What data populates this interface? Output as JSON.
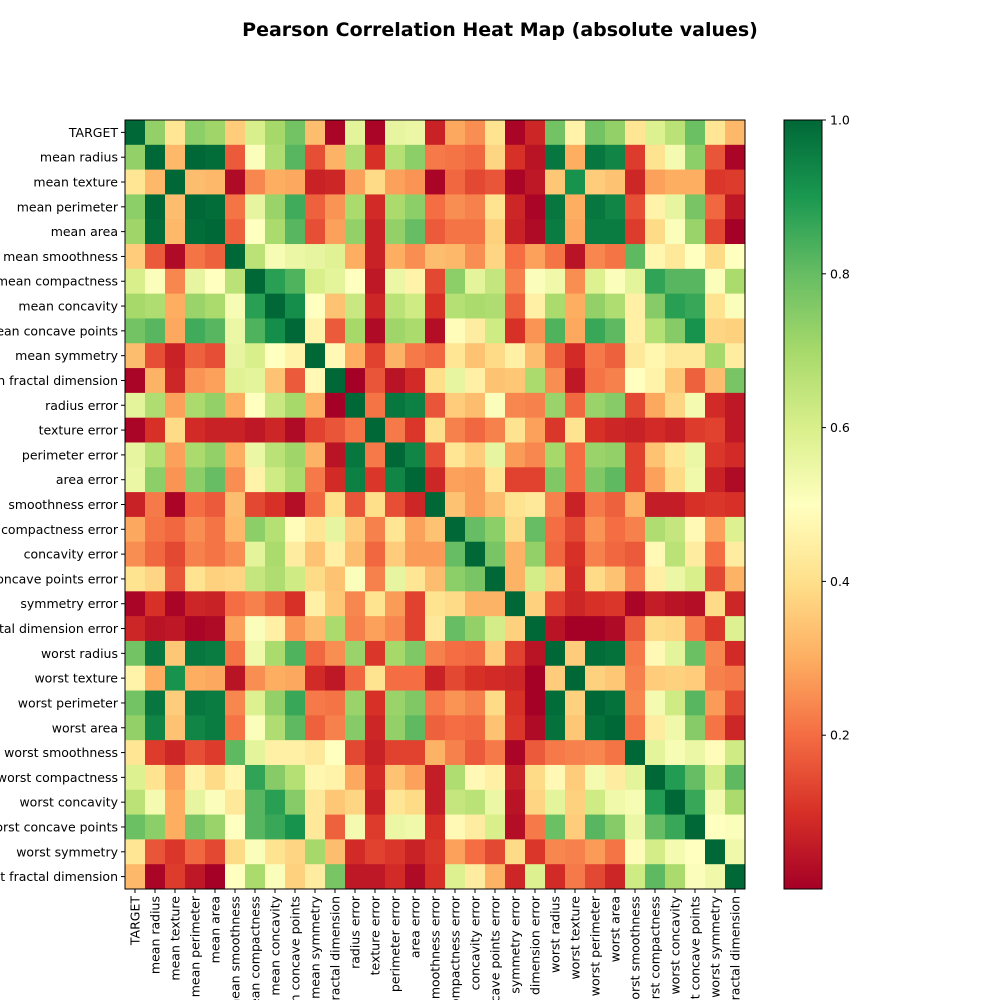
{
  "chart_data": {
    "type": "heatmap",
    "title": "Pearson Correlation Heat Map (absolute values)",
    "colormap": "RdYlGn",
    "colorbar": {
      "range": [
        0,
        1
      ],
      "ticks": [
        "0.2",
        "0.4",
        "0.6",
        "0.8",
        "1.0"
      ]
    },
    "labels": [
      "TARGET",
      "mean radius",
      "mean texture",
      "mean perimeter",
      "mean area",
      "mean smoothness",
      "mean compactness",
      "mean concavity",
      "mean concave points",
      "mean symmetry",
      "mean fractal dimension",
      "radius error",
      "texture error",
      "perimeter error",
      "area error",
      "smoothness error",
      "compactness error",
      "concavity error",
      "concave points error",
      "symmetry error",
      "fractal dimension error",
      "worst radius",
      "worst texture",
      "worst perimeter",
      "worst area",
      "worst smoothness",
      "worst compactness",
      "worst concavity",
      "worst concave points",
      "worst symmetry",
      "worst fractal dimension"
    ],
    "values": [
      [
        1,
        0.73,
        0.42,
        0.74,
        0.71,
        0.36,
        0.6,
        0.7,
        0.78,
        0.33,
        0.01,
        0.57,
        0.01,
        0.56,
        0.55,
        0.07,
        0.29,
        0.25,
        0.41,
        0.01,
        0.08,
        0.78,
        0.46,
        0.78,
        0.73,
        0.42,
        0.59,
        0.66,
        0.79,
        0.42,
        0.32
      ],
      [
        0.73,
        1,
        0.32,
        1.0,
        0.99,
        0.17,
        0.51,
        0.68,
        0.82,
        0.15,
        0.31,
        0.68,
        0.1,
        0.67,
        0.74,
        0.22,
        0.21,
        0.19,
        0.38,
        0.1,
        0.04,
        0.97,
        0.3,
        0.97,
        0.94,
        0.12,
        0.41,
        0.53,
        0.74,
        0.16,
        0.01
      ],
      [
        0.42,
        0.32,
        1,
        0.33,
        0.32,
        0.02,
        0.24,
        0.3,
        0.29,
        0.07,
        0.08,
        0.28,
        0.39,
        0.28,
        0.26,
        0.01,
        0.19,
        0.14,
        0.16,
        0.01,
        0.05,
        0.35,
        0.91,
        0.36,
        0.34,
        0.08,
        0.28,
        0.3,
        0.3,
        0.11,
        0.12
      ],
      [
        0.74,
        1.0,
        0.33,
        1,
        0.99,
        0.21,
        0.56,
        0.72,
        0.85,
        0.18,
        0.26,
        0.69,
        0.09,
        0.69,
        0.74,
        0.2,
        0.25,
        0.23,
        0.41,
        0.08,
        0.01,
        0.97,
        0.3,
        0.97,
        0.94,
        0.15,
        0.46,
        0.56,
        0.77,
        0.19,
        0.05
      ],
      [
        0.71,
        0.99,
        0.32,
        0.99,
        1,
        0.18,
        0.5,
        0.69,
        0.82,
        0.15,
        0.28,
        0.73,
        0.07,
        0.73,
        0.8,
        0.17,
        0.21,
        0.21,
        0.37,
        0.07,
        0.02,
        0.96,
        0.29,
        0.96,
        0.96,
        0.12,
        0.39,
        0.51,
        0.72,
        0.14,
        0.0
      ],
      [
        0.36,
        0.17,
        0.02,
        0.21,
        0.18,
        1,
        0.66,
        0.52,
        0.55,
        0.56,
        0.58,
        0.3,
        0.07,
        0.3,
        0.25,
        0.33,
        0.32,
        0.25,
        0.38,
        0.2,
        0.28,
        0.21,
        0.04,
        0.24,
        0.21,
        0.81,
        0.47,
        0.43,
        0.5,
        0.39,
        0.5
      ],
      [
        0.6,
        0.51,
        0.24,
        0.56,
        0.5,
        0.66,
        1,
        0.88,
        0.83,
        0.6,
        0.57,
        0.5,
        0.05,
        0.55,
        0.46,
        0.14,
        0.74,
        0.57,
        0.64,
        0.23,
        0.51,
        0.54,
        0.25,
        0.59,
        0.51,
        0.57,
        0.87,
        0.82,
        0.82,
        0.51,
        0.69
      ],
      [
        0.7,
        0.68,
        0.3,
        0.72,
        0.69,
        0.52,
        0.88,
        1,
        0.92,
        0.5,
        0.34,
        0.63,
        0.08,
        0.66,
        0.62,
        0.1,
        0.67,
        0.69,
        0.68,
        0.18,
        0.45,
        0.69,
        0.3,
        0.73,
        0.68,
        0.45,
        0.75,
        0.88,
        0.86,
        0.41,
        0.51
      ],
      [
        0.78,
        0.82,
        0.29,
        0.85,
        0.82,
        0.55,
        0.83,
        0.92,
        1,
        0.46,
        0.17,
        0.7,
        0.02,
        0.71,
        0.69,
        0.03,
        0.49,
        0.44,
        0.62,
        0.1,
        0.26,
        0.83,
        0.29,
        0.86,
        0.81,
        0.45,
        0.67,
        0.75,
        0.91,
        0.38,
        0.37
      ],
      [
        0.33,
        0.15,
        0.07,
        0.18,
        0.15,
        0.56,
        0.6,
        0.5,
        0.46,
        1,
        0.48,
        0.3,
        0.13,
        0.31,
        0.22,
        0.19,
        0.42,
        0.34,
        0.39,
        0.45,
        0.33,
        0.19,
        0.09,
        0.22,
        0.18,
        0.43,
        0.47,
        0.43,
        0.43,
        0.7,
        0.44
      ],
      [
        0.01,
        0.31,
        0.08,
        0.26,
        0.28,
        0.58,
        0.57,
        0.34,
        0.17,
        0.48,
        1,
        0.0,
        0.16,
        0.04,
        0.09,
        0.4,
        0.56,
        0.45,
        0.34,
        0.35,
        0.69,
        0.25,
        0.05,
        0.21,
        0.23,
        0.5,
        0.46,
        0.35,
        0.18,
        0.33,
        0.77
      ],
      [
        0.57,
        0.68,
        0.28,
        0.69,
        0.73,
        0.3,
        0.5,
        0.63,
        0.7,
        0.3,
        0.0,
        1,
        0.21,
        0.97,
        0.95,
        0.16,
        0.36,
        0.33,
        0.51,
        0.24,
        0.23,
        0.72,
        0.19,
        0.72,
        0.75,
        0.14,
        0.29,
        0.38,
        0.53,
        0.09,
        0.05
      ],
      [
        0.01,
        0.1,
        0.39,
        0.09,
        0.07,
        0.07,
        0.05,
        0.08,
        0.02,
        0.13,
        0.16,
        0.21,
        1,
        0.22,
        0.11,
        0.4,
        0.23,
        0.19,
        0.23,
        0.41,
        0.28,
        0.11,
        0.41,
        0.1,
        0.08,
        0.07,
        0.09,
        0.07,
        0.12,
        0.13,
        0.05
      ],
      [
        0.56,
        0.67,
        0.28,
        0.69,
        0.73,
        0.3,
        0.55,
        0.66,
        0.71,
        0.31,
        0.04,
        0.97,
        0.22,
        1,
        0.94,
        0.15,
        0.42,
        0.36,
        0.56,
        0.27,
        0.24,
        0.7,
        0.2,
        0.72,
        0.73,
        0.13,
        0.34,
        0.42,
        0.55,
        0.11,
        0.09
      ],
      [
        0.55,
        0.74,
        0.26,
        0.74,
        0.8,
        0.25,
        0.46,
        0.62,
        0.69,
        0.22,
        0.09,
        0.95,
        0.11,
        0.94,
        1,
        0.08,
        0.28,
        0.27,
        0.42,
        0.13,
        0.13,
        0.76,
        0.2,
        0.76,
        0.81,
        0.13,
        0.28,
        0.39,
        0.54,
        0.07,
        0.02
      ],
      [
        0.07,
        0.22,
        0.01,
        0.2,
        0.17,
        0.33,
        0.14,
        0.1,
        0.03,
        0.19,
        0.4,
        0.16,
        0.4,
        0.15,
        0.08,
        1,
        0.34,
        0.27,
        0.33,
        0.41,
        0.43,
        0.23,
        0.07,
        0.22,
        0.18,
        0.31,
        0.06,
        0.06,
        0.1,
        0.11,
        0.1
      ],
      [
        0.29,
        0.21,
        0.19,
        0.25,
        0.21,
        0.32,
        0.74,
        0.67,
        0.49,
        0.42,
        0.56,
        0.36,
        0.23,
        0.42,
        0.28,
        0.34,
        1,
        0.8,
        0.74,
        0.39,
        0.8,
        0.2,
        0.14,
        0.26,
        0.2,
        0.23,
        0.68,
        0.64,
        0.48,
        0.28,
        0.59
      ],
      [
        0.25,
        0.19,
        0.14,
        0.23,
        0.21,
        0.25,
        0.57,
        0.69,
        0.44,
        0.34,
        0.45,
        0.33,
        0.19,
        0.36,
        0.27,
        0.27,
        0.8,
        1,
        0.77,
        0.31,
        0.73,
        0.19,
        0.1,
        0.23,
        0.19,
        0.17,
        0.48,
        0.66,
        0.44,
        0.2,
        0.44
      ],
      [
        0.41,
        0.38,
        0.16,
        0.41,
        0.37,
        0.38,
        0.64,
        0.68,
        0.62,
        0.39,
        0.34,
        0.51,
        0.23,
        0.56,
        0.42,
        0.33,
        0.74,
        0.77,
        1,
        0.31,
        0.61,
        0.36,
        0.09,
        0.39,
        0.34,
        0.22,
        0.45,
        0.55,
        0.6,
        0.14,
        0.31
      ],
      [
        0.01,
        0.1,
        0.01,
        0.08,
        0.07,
        0.2,
        0.23,
        0.18,
        0.1,
        0.45,
        0.35,
        0.24,
        0.41,
        0.27,
        0.13,
        0.41,
        0.39,
        0.31,
        0.31,
        1,
        0.37,
        0.13,
        0.08,
        0.1,
        0.11,
        0.01,
        0.06,
        0.04,
        0.03,
        0.39,
        0.08
      ],
      [
        0.08,
        0.04,
        0.05,
        0.01,
        0.02,
        0.28,
        0.51,
        0.45,
        0.26,
        0.33,
        0.69,
        0.23,
        0.28,
        0.24,
        0.13,
        0.43,
        0.8,
        0.73,
        0.61,
        0.37,
        1,
        0.04,
        0.0,
        0.0,
        0.02,
        0.17,
        0.39,
        0.38,
        0.22,
        0.11,
        0.59
      ],
      [
        0.78,
        0.97,
        0.35,
        0.97,
        0.96,
        0.21,
        0.54,
        0.69,
        0.83,
        0.19,
        0.25,
        0.72,
        0.11,
        0.7,
        0.76,
        0.23,
        0.2,
        0.19,
        0.36,
        0.13,
        0.04,
        1,
        0.36,
        0.99,
        0.98,
        0.22,
        0.48,
        0.57,
        0.79,
        0.24,
        0.09
      ],
      [
        0.46,
        0.3,
        0.91,
        0.3,
        0.29,
        0.04,
        0.25,
        0.3,
        0.29,
        0.09,
        0.05,
        0.19,
        0.41,
        0.2,
        0.2,
        0.07,
        0.14,
        0.1,
        0.09,
        0.08,
        0.0,
        0.36,
        1,
        0.37,
        0.35,
        0.23,
        0.36,
        0.37,
        0.36,
        0.23,
        0.22
      ],
      [
        0.78,
        0.97,
        0.36,
        0.97,
        0.96,
        0.24,
        0.59,
        0.73,
        0.86,
        0.22,
        0.21,
        0.72,
        0.1,
        0.72,
        0.76,
        0.22,
        0.26,
        0.23,
        0.39,
        0.1,
        0.0,
        0.99,
        0.37,
        1,
        0.98,
        0.24,
        0.53,
        0.62,
        0.82,
        0.27,
        0.14
      ],
      [
        0.73,
        0.94,
        0.34,
        0.94,
        0.96,
        0.21,
        0.51,
        0.68,
        0.81,
        0.18,
        0.23,
        0.75,
        0.08,
        0.73,
        0.81,
        0.18,
        0.2,
        0.19,
        0.34,
        0.11,
        0.02,
        0.98,
        0.35,
        0.98,
        1,
        0.21,
        0.44,
        0.54,
        0.75,
        0.21,
        0.08
      ],
      [
        0.42,
        0.12,
        0.08,
        0.15,
        0.12,
        0.81,
        0.57,
        0.45,
        0.45,
        0.43,
        0.5,
        0.14,
        0.07,
        0.13,
        0.13,
        0.31,
        0.23,
        0.17,
        0.22,
        0.01,
        0.17,
        0.22,
        0.23,
        0.24,
        0.21,
        1,
        0.57,
        0.52,
        0.55,
        0.49,
        0.62
      ],
      [
        0.59,
        0.41,
        0.28,
        0.46,
        0.39,
        0.47,
        0.87,
        0.75,
        0.67,
        0.47,
        0.46,
        0.29,
        0.09,
        0.34,
        0.28,
        0.06,
        0.68,
        0.48,
        0.45,
        0.06,
        0.39,
        0.48,
        0.36,
        0.53,
        0.44,
        0.57,
        1,
        0.89,
        0.8,
        0.61,
        0.81
      ],
      [
        0.66,
        0.53,
        0.3,
        0.56,
        0.51,
        0.43,
        0.82,
        0.88,
        0.75,
        0.43,
        0.35,
        0.38,
        0.07,
        0.42,
        0.39,
        0.06,
        0.64,
        0.66,
        0.55,
        0.04,
        0.38,
        0.57,
        0.37,
        0.62,
        0.54,
        0.52,
        0.89,
        1,
        0.86,
        0.53,
        0.69
      ],
      [
        0.79,
        0.74,
        0.3,
        0.77,
        0.72,
        0.5,
        0.82,
        0.86,
        0.91,
        0.43,
        0.18,
        0.53,
        0.12,
        0.55,
        0.54,
        0.1,
        0.48,
        0.44,
        0.6,
        0.03,
        0.22,
        0.79,
        0.36,
        0.82,
        0.75,
        0.55,
        0.8,
        0.86,
        1,
        0.5,
        0.51
      ],
      [
        0.42,
        0.16,
        0.11,
        0.19,
        0.14,
        0.39,
        0.51,
        0.41,
        0.38,
        0.7,
        0.33,
        0.09,
        0.13,
        0.11,
        0.07,
        0.11,
        0.28,
        0.2,
        0.14,
        0.39,
        0.11,
        0.24,
        0.23,
        0.27,
        0.21,
        0.49,
        0.61,
        0.53,
        0.5,
        1,
        0.54
      ],
      [
        0.32,
        0.01,
        0.12,
        0.05,
        0.0,
        0.5,
        0.69,
        0.51,
        0.37,
        0.44,
        0.77,
        0.05,
        0.05,
        0.09,
        0.02,
        0.1,
        0.59,
        0.44,
        0.31,
        0.08,
        0.59,
        0.09,
        0.22,
        0.14,
        0.08,
        0.62,
        0.81,
        0.69,
        0.51,
        0.54,
        1
      ]
    ]
  }
}
